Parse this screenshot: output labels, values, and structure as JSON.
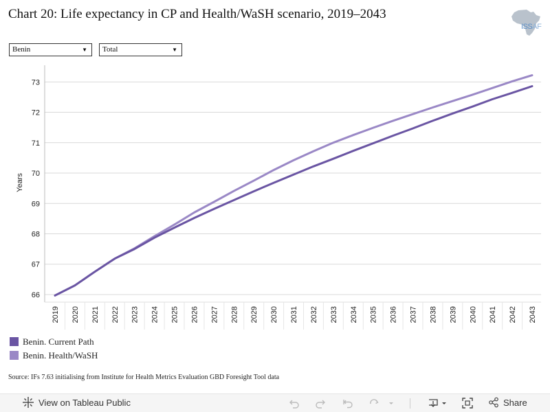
{
  "title": "Chart 20: Life expectancy in CP and Health/WaSH scenario, 2019–2043",
  "logo": {
    "text_bold": "ISS",
    "text_thin": "AF",
    "icon": "africa-map-icon"
  },
  "filters": [
    {
      "selected": "Benin"
    },
    {
      "selected": "Total"
    }
  ],
  "source": "Source: IFs 7.63 initialising from Institute for Health Metrics Evaluation GBD Foresight Tool data",
  "toolbar": {
    "view_label": "View on Tableau Public",
    "share_label": "Share"
  },
  "colors": {
    "current_path": "#6a55a3",
    "health_wash": "#9a88c6",
    "grid": "#d9d9d9"
  },
  "chart_data": {
    "type": "line",
    "title": "Chart 20: Life expectancy in CP and Health/WaSH scenario, 2019–2043",
    "xlabel": "",
    "ylabel": "Years",
    "x": [
      2019,
      2020,
      2021,
      2022,
      2023,
      2024,
      2025,
      2026,
      2027,
      2028,
      2029,
      2030,
      2031,
      2032,
      2033,
      2034,
      2035,
      2036,
      2037,
      2038,
      2039,
      2040,
      2041,
      2042,
      2043
    ],
    "ylim": [
      65.75,
      73.55
    ],
    "yticks": [
      66,
      67,
      68,
      69,
      70,
      71,
      72,
      73
    ],
    "grid": true,
    "legend_position": "bottom-left",
    "series": [
      {
        "name": "Benin. Current Path",
        "values": [
          65.97,
          66.3,
          66.75,
          67.18,
          67.5,
          67.87,
          68.2,
          68.52,
          68.82,
          69.11,
          69.4,
          69.68,
          69.95,
          70.22,
          70.47,
          70.73,
          70.98,
          71.23,
          71.47,
          71.72,
          71.96,
          72.19,
          72.43,
          72.64,
          72.86
        ]
      },
      {
        "name": "Benin. Health/WaSH",
        "values": [
          65.97,
          66.3,
          66.75,
          67.18,
          67.52,
          67.92,
          68.3,
          68.7,
          69.05,
          69.41,
          69.75,
          70.1,
          70.42,
          70.72,
          71.0,
          71.25,
          71.49,
          71.72,
          71.94,
          72.16,
          72.37,
          72.58,
          72.8,
          73.02,
          73.22
        ]
      }
    ]
  }
}
